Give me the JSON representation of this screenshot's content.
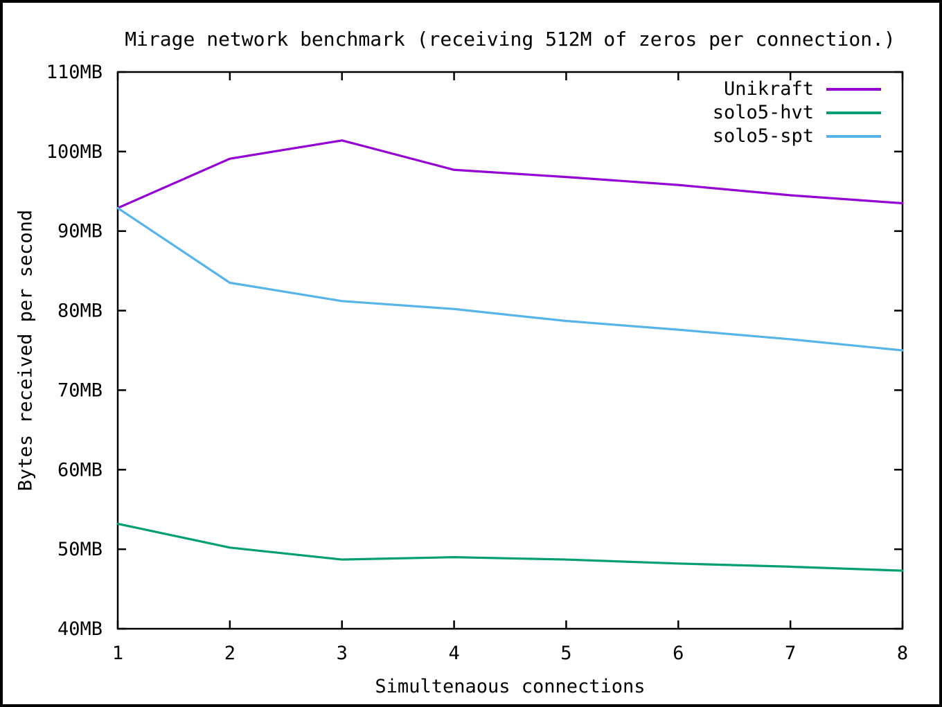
{
  "window": {
    "background": "#ffffff",
    "frame_color": "#000000",
    "text_color": "#000000"
  },
  "chart_data": {
    "type": "line",
    "title": "Mirage network benchmark (receiving 512M of zeros per connection.)",
    "xlabel": "Simultenaous connections",
    "ylabel": "Bytes received per second",
    "x": [
      1,
      2,
      3,
      4,
      5,
      6,
      7,
      8
    ],
    "xlim": [
      1,
      8
    ],
    "ylim": [
      40,
      110
    ],
    "xticks": [
      1,
      2,
      3,
      4,
      5,
      6,
      7,
      8
    ],
    "xticklabels": [
      "1",
      "2",
      "3",
      "4",
      "5",
      "6",
      "7",
      "8"
    ],
    "yticks": [
      40,
      50,
      60,
      70,
      80,
      90,
      100,
      110
    ],
    "yticklabels": [
      "40MB",
      "50MB",
      "60MB",
      "70MB",
      "80MB",
      "90MB",
      "100MB",
      "110MB"
    ],
    "grid": false,
    "legend_position": "top-right-inside",
    "series": [
      {
        "name": "Unikraft",
        "color": "#9400d3",
        "values": [
          92.9,
          99.1,
          101.4,
          97.7,
          96.8,
          95.8,
          94.5,
          93.5
        ]
      },
      {
        "name": "solo5-hvt",
        "color": "#009e73",
        "values": [
          53.2,
          50.2,
          48.7,
          49.0,
          48.7,
          48.2,
          47.8,
          47.3
        ]
      },
      {
        "name": "solo5-spt",
        "color": "#56b4e9",
        "values": [
          92.9,
          83.5,
          81.2,
          80.2,
          78.7,
          77.6,
          76.4,
          75.0
        ]
      }
    ]
  }
}
